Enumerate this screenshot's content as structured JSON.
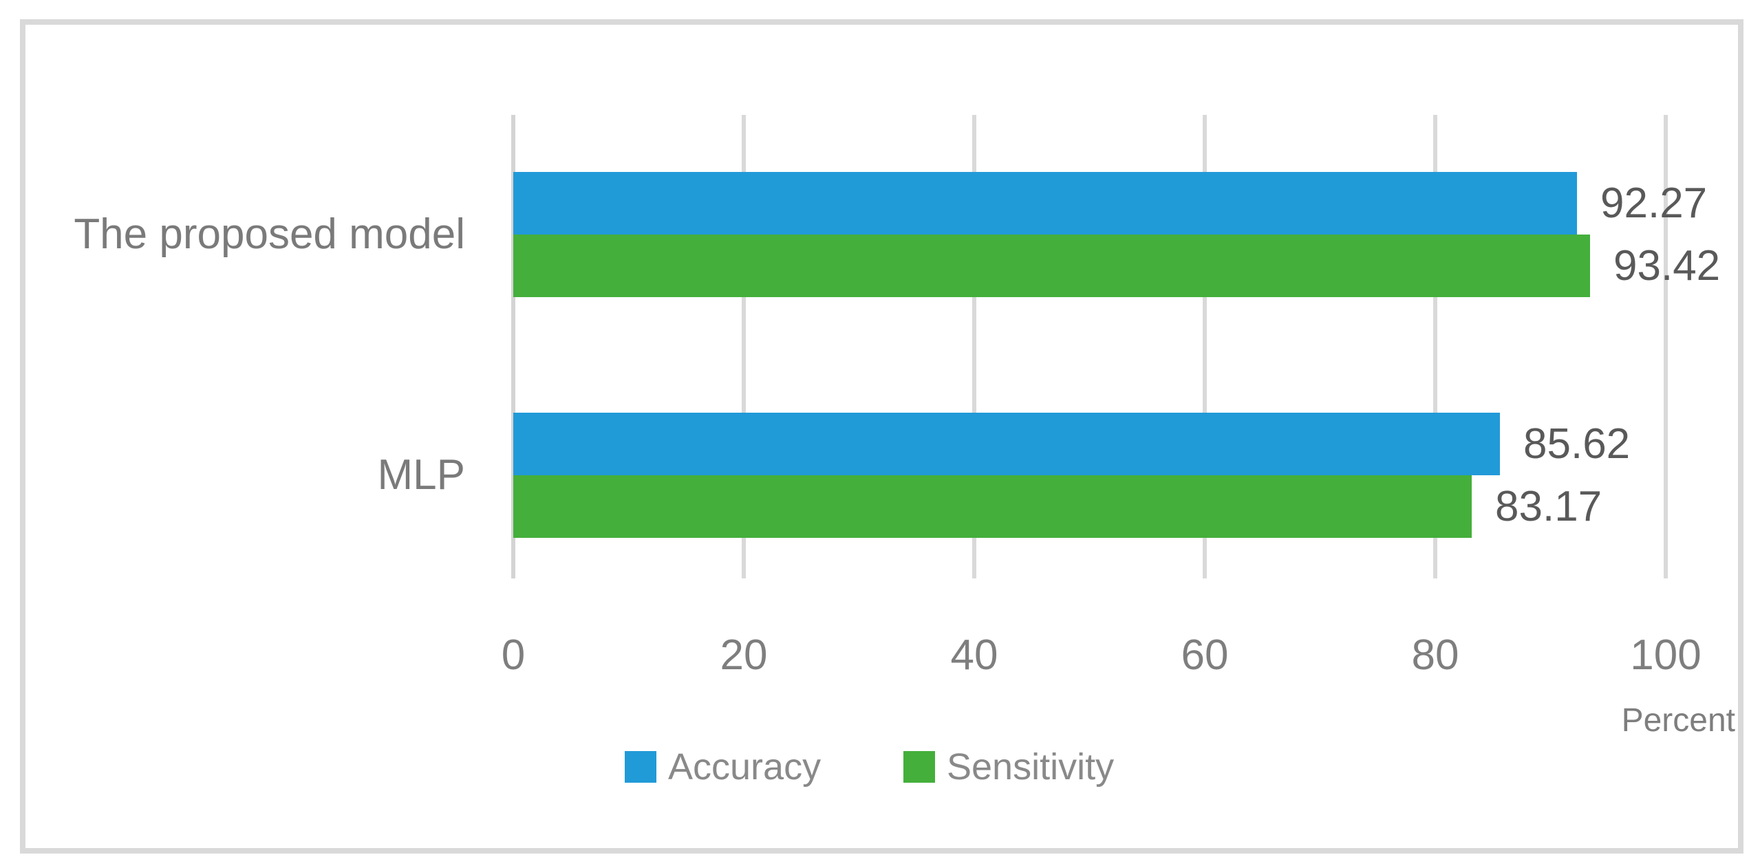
{
  "chart_data": {
    "type": "bar",
    "orientation": "horizontal",
    "title": "",
    "categories": [
      "The proposed model",
      "MLP"
    ],
    "series": [
      {
        "name": "Accuracy",
        "color": "#219AD8",
        "values": [
          92.27,
          85.62
        ]
      },
      {
        "name": "Sensitivity",
        "color": "#44AF3B",
        "values": [
          93.42,
          83.17
        ]
      }
    ],
    "data_labels": [
      "92.27",
      "93.42",
      "85.62",
      "83.17"
    ],
    "xlabel": "Percent",
    "x_ticks": [
      "0",
      "20",
      "40",
      "60",
      "80",
      "100"
    ],
    "x_tick_values": [
      0,
      20,
      40,
      60,
      80,
      100
    ],
    "xlim": [
      0,
      100
    ],
    "grid": true,
    "gridline_color": "#D9D9D9",
    "legend_position": "bottom",
    "legend_entries": [
      {
        "label": "Accuracy",
        "color": "#219AD8"
      },
      {
        "label": "Sensitivity",
        "color": "#44AF3B"
      }
    ],
    "text_colors": {
      "data_label": "#595959",
      "category_label": "#7A7A7A",
      "tick_label": "#7E7E7E",
      "legend_label": "#898989"
    }
  }
}
